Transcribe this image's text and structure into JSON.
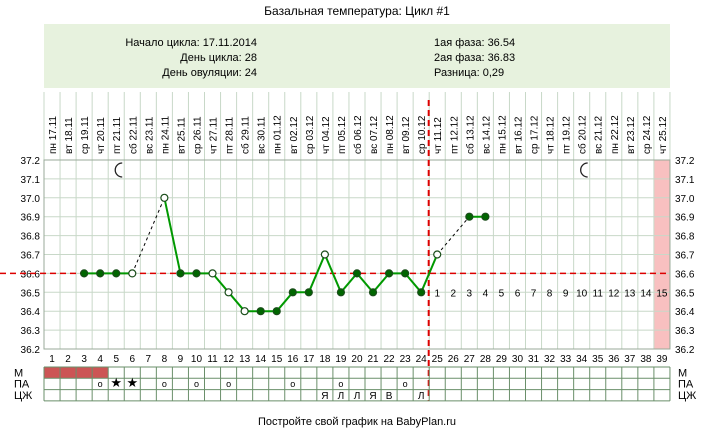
{
  "title": "Базальная температура: Цикл #1",
  "info": {
    "start_label": "Начало цикла: 17.11.2014",
    "day_label": "День цикла: 28",
    "ovulation_label": "День овуляции: 24",
    "phase1_label": "1ая фаза: 36.54",
    "phase2_label": "2ая фаза: 36.83",
    "diff_label": "Разница: 0,29"
  },
  "footer": "Постройте свой график на BabyPlan.ru",
  "colors": {
    "grid": "#c8d8c8",
    "line": "#009900",
    "point": "#006600",
    "reference": "#dd0000",
    "menstruation": "#cc5555",
    "info_bg": "#e7f2de",
    "after_count": "#c05050"
  },
  "chart_data": {
    "type": "line",
    "title": "Базальная температура: Цикл #1",
    "ylim": [
      36.2,
      37.2
    ],
    "y_ticks": [
      "37.2",
      "37.1",
      "37.0",
      "36.9",
      "36.8",
      "36.7",
      "36.6",
      "36.5",
      "36.4",
      "36.3",
      "36.2"
    ],
    "dates": [
      "17.11",
      "18.11",
      "19.11",
      "20.11",
      "21.11",
      "22.11",
      "23.11",
      "24.11",
      "25.11",
      "26.11",
      "27.11",
      "28.11",
      "29.11",
      "30.11",
      "01.12",
      "02.12",
      "03.12",
      "04.12",
      "05.12",
      "06.12",
      "07.12",
      "08.12",
      "09.12",
      "10.12",
      "11.12",
      "12.12",
      "13.12",
      "14.12",
      "15.12",
      "16.12",
      "17.12",
      "18.12",
      "19.12",
      "20.12",
      "21.12",
      "22.12",
      "23.12",
      "24.12",
      "25.12"
    ],
    "weekdays": [
      "пн",
      "вт",
      "ср",
      "чт",
      "пт",
      "сб",
      "вс",
      "пн",
      "вт",
      "ср",
      "чт",
      "пт",
      "сб",
      "вс",
      "пн",
      "вт",
      "ср",
      "чт",
      "пт",
      "сб",
      "вс",
      "пн",
      "вт",
      "ср",
      "чт",
      "пт",
      "сб",
      "вс",
      "пн",
      "вт",
      "ср",
      "чт",
      "пт",
      "сб",
      "вс",
      "пн",
      "вт",
      "ср",
      "чт"
    ],
    "cycle_days": [
      1,
      2,
      3,
      4,
      5,
      6,
      7,
      8,
      9,
      10,
      11,
      12,
      13,
      14,
      15,
      16,
      17,
      18,
      19,
      20,
      21,
      22,
      23,
      24,
      25,
      26,
      27,
      28,
      29,
      30,
      31,
      32,
      33,
      34,
      35,
      36,
      37,
      38,
      39
    ],
    "temperatures": [
      null,
      null,
      36.6,
      36.6,
      36.6,
      36.6,
      null,
      37.0,
      36.6,
      36.6,
      36.6,
      36.5,
      36.4,
      36.4,
      36.4,
      36.5,
      36.5,
      36.7,
      36.5,
      36.6,
      36.5,
      36.6,
      36.6,
      36.5,
      36.7,
      null,
      36.9,
      36.9,
      null,
      null,
      null,
      null,
      null,
      null,
      null,
      null,
      null,
      null,
      null
    ],
    "hollow_points": [
      6,
      8,
      11,
      12,
      13,
      18,
      25
    ],
    "dashed_segments": [
      [
        6,
        8
      ],
      [
        25,
        27
      ]
    ],
    "coverline": 36.6,
    "ovulation_day": 24,
    "after_ovulation_labels": [
      "1",
      "2",
      "3",
      "4",
      "5",
      "6",
      "7",
      "8",
      "9",
      "10",
      "11",
      "12",
      "13",
      "14",
      "15"
    ],
    "highlight_day": 39,
    "moon_days": [
      5,
      34
    ],
    "rows": {
      "labels": [
        "М",
        "ПА",
        "ЦЖ"
      ],
      "menstruation_days": [
        1,
        2,
        3,
        4
      ],
      "pa_marks": [
        {
          "day": 4,
          "mark": "o"
        },
        {
          "day": 5,
          "mark": "*"
        },
        {
          "day": 6,
          "mark": "*"
        },
        {
          "day": 8,
          "mark": "o"
        },
        {
          "day": 10,
          "mark": "o"
        },
        {
          "day": 12,
          "mark": "o"
        },
        {
          "day": 16,
          "mark": "o"
        },
        {
          "day": 19,
          "mark": "o"
        },
        {
          "day": 23,
          "mark": "o"
        }
      ],
      "cm_marks": [
        {
          "day": 18,
          "mark": "Я"
        },
        {
          "day": 19,
          "mark": "Л"
        },
        {
          "day": 20,
          "mark": "Л"
        },
        {
          "day": 21,
          "mark": "Я"
        },
        {
          "day": 22,
          "mark": "В"
        },
        {
          "day": 24,
          "mark": "Л"
        }
      ]
    }
  }
}
